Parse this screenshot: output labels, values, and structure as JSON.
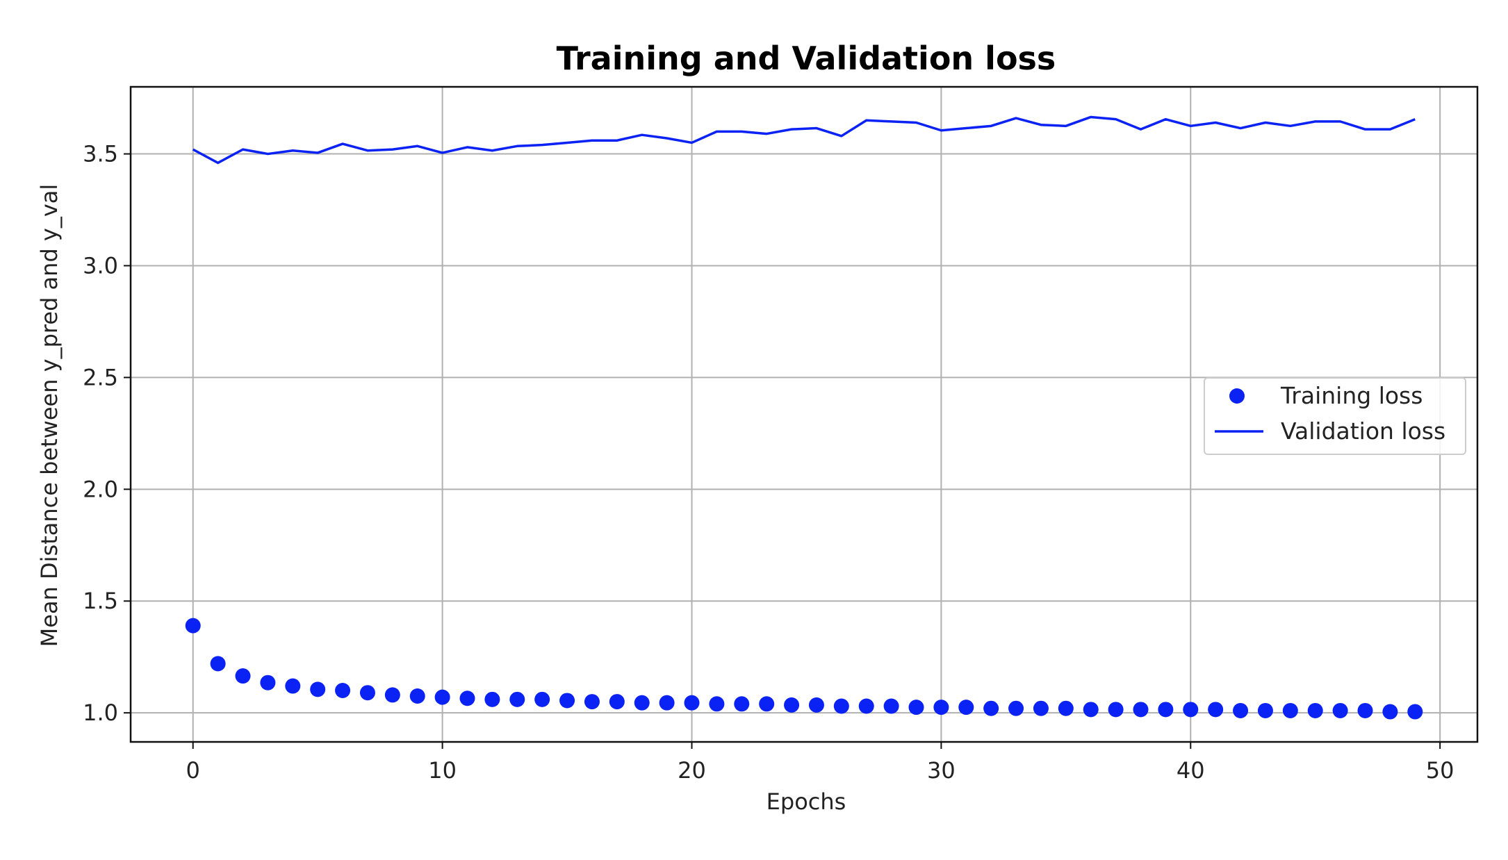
{
  "chart_data": {
    "type": "line",
    "title": "Training and Validation loss",
    "xlabel": "Epochs",
    "ylabel": "Mean Distance between y_pred and y_val",
    "xlim": [
      -2.5,
      51.5
    ],
    "ylim": [
      0.87,
      3.8
    ],
    "xticks": [
      0,
      10,
      20,
      30,
      40,
      50
    ],
    "yticks": [
      1.0,
      1.5,
      2.0,
      2.5,
      3.0,
      3.5
    ],
    "xtick_labels": [
      "0",
      "10",
      "20",
      "30",
      "40",
      "50"
    ],
    "ytick_labels": [
      "1.0",
      "1.5",
      "2.0",
      "2.5",
      "3.0",
      "3.5"
    ],
    "grid": true,
    "legend_position": "center-right",
    "x": [
      0,
      1,
      2,
      3,
      4,
      5,
      6,
      7,
      8,
      9,
      10,
      11,
      12,
      13,
      14,
      15,
      16,
      17,
      18,
      19,
      20,
      21,
      22,
      23,
      24,
      25,
      26,
      27,
      28,
      29,
      30,
      31,
      32,
      33,
      34,
      35,
      36,
      37,
      38,
      39,
      40,
      41,
      42,
      43,
      44,
      45,
      46,
      47,
      48,
      49
    ],
    "series": [
      {
        "name": "Training loss",
        "style": "scatter",
        "color": "#0b22f5",
        "values": [
          1.39,
          1.22,
          1.165,
          1.135,
          1.12,
          1.105,
          1.1,
          1.09,
          1.08,
          1.075,
          1.07,
          1.065,
          1.06,
          1.06,
          1.06,
          1.055,
          1.05,
          1.05,
          1.045,
          1.045,
          1.045,
          1.04,
          1.04,
          1.04,
          1.035,
          1.035,
          1.03,
          1.03,
          1.03,
          1.025,
          1.025,
          1.025,
          1.02,
          1.02,
          1.02,
          1.02,
          1.015,
          1.015,
          1.015,
          1.015,
          1.015,
          1.015,
          1.01,
          1.01,
          1.01,
          1.01,
          1.01,
          1.01,
          1.005,
          1.005
        ]
      },
      {
        "name": "Validation loss",
        "style": "line",
        "color": "#0b22f5",
        "values": [
          3.52,
          3.46,
          3.52,
          3.5,
          3.515,
          3.505,
          3.545,
          3.515,
          3.52,
          3.535,
          3.505,
          3.53,
          3.515,
          3.535,
          3.54,
          3.55,
          3.56,
          3.56,
          3.585,
          3.57,
          3.55,
          3.6,
          3.6,
          3.59,
          3.61,
          3.615,
          3.58,
          3.65,
          3.645,
          3.64,
          3.605,
          3.615,
          3.625,
          3.66,
          3.63,
          3.625,
          3.665,
          3.655,
          3.61,
          3.655,
          3.625,
          3.64,
          3.615,
          3.64,
          3.625,
          3.645,
          3.645,
          3.61,
          3.61,
          3.655
        ]
      }
    ]
  }
}
